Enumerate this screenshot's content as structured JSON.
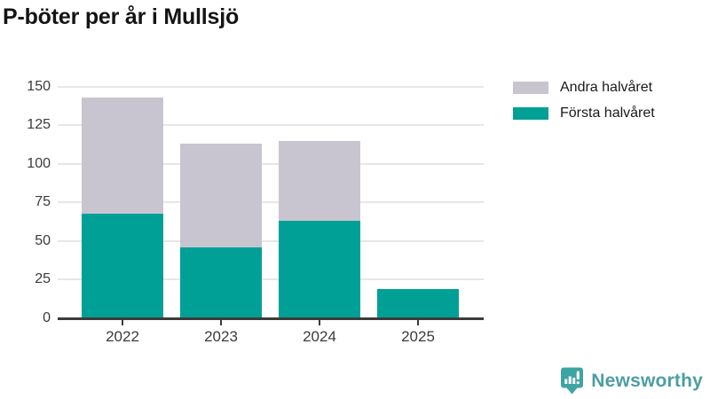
{
  "title": "P-böter per år i Mullsjö",
  "chart_data": {
    "type": "bar",
    "stacked": true,
    "title": "P-böter per år i Mullsjö",
    "categories": [
      "2022",
      "2023",
      "2024",
      "2025"
    ],
    "series": [
      {
        "name": "Första halvåret",
        "color": "#00A096",
        "values": [
          68,
          46,
          63,
          19
        ]
      },
      {
        "name": "Andra halvåret",
        "color": "#C8C5D0",
        "values": [
          75,
          67,
          52,
          0
        ]
      }
    ],
    "totals": [
      143,
      113,
      115,
      19
    ],
    "xlabel": "",
    "ylabel": "",
    "ylim": [
      0,
      150
    ],
    "yticks": [
      0,
      25,
      50,
      75,
      100,
      125,
      150
    ],
    "grid": true,
    "legend_position": "top-right"
  },
  "legend": {
    "items": [
      {
        "label": "Andra halvåret",
        "color": "#C8C5D0"
      },
      {
        "label": "Första halvåret",
        "color": "#00A096"
      }
    ]
  },
  "branding": {
    "logo_text": "Newsworthy",
    "logo_icon": "bar-chart-speech-bubble-icon",
    "icon_color": "#3EA3A3",
    "text_color": "#4C9EA4"
  },
  "style_colors": {
    "axis": "#3b3b3b",
    "gridline": "#e7e7e7",
    "title_text": "#141414"
  }
}
